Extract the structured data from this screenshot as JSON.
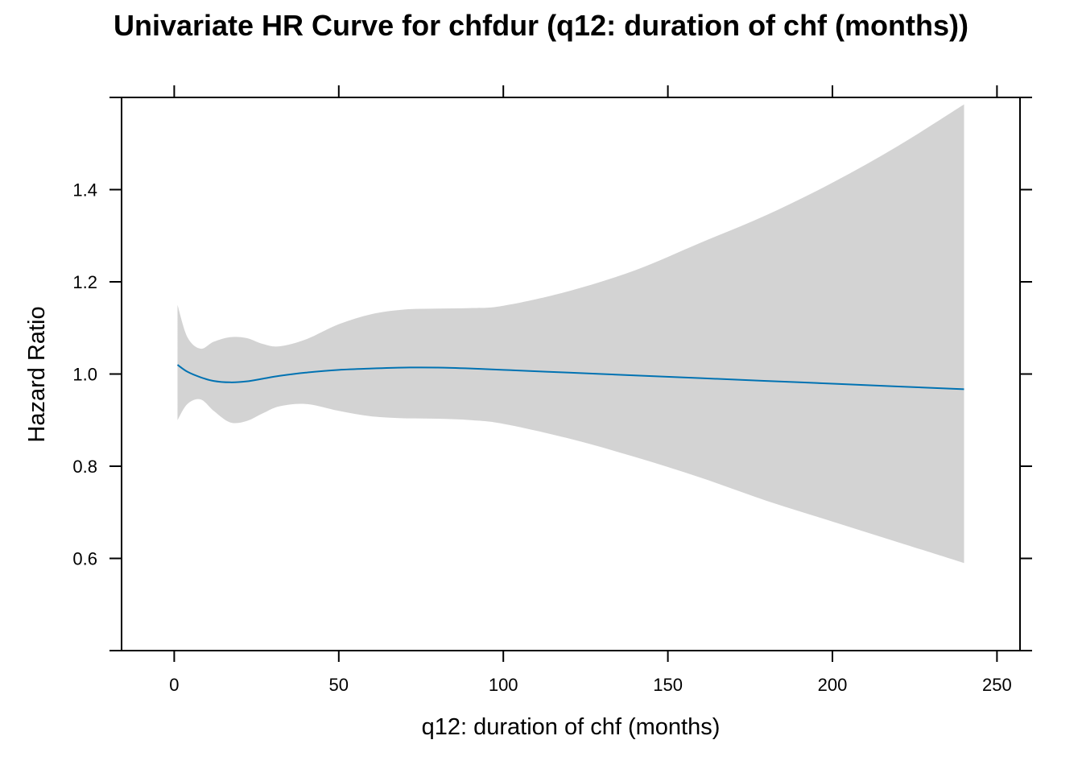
{
  "chart_data": {
    "type": "line",
    "title": "Univariate HR Curve for chfdur (q12: duration of chf (months))",
    "xlabel": "q12: duration of chf (months)",
    "ylabel": "Hazard Ratio",
    "xlim": [
      -16,
      257
    ],
    "ylim": [
      0.4,
      1.6
    ],
    "x_ticks": [
      0,
      50,
      100,
      150,
      200,
      250
    ],
    "x_tick_labels": [
      "0",
      "50",
      "100",
      "150",
      "200",
      "250"
    ],
    "y_ticks": [
      0.6,
      0.8,
      1.0,
      1.2,
      1.4
    ],
    "y_tick_labels": [
      "0.6",
      "0.8",
      "1.0",
      "1.2",
      "1.4"
    ],
    "grid": false,
    "colors": {
      "line": "#0072B2",
      "band": "#D3D3D3",
      "axis": "#000000"
    },
    "series": [
      {
        "x": [
          1,
          4,
          8,
          12,
          17,
          22,
          27,
          32,
          40,
          50,
          60,
          70,
          80,
          90,
          100,
          120,
          140,
          160,
          180,
          200,
          220,
          240
        ],
        "hr": [
          1.02,
          1.005,
          0.993,
          0.985,
          0.982,
          0.984,
          0.99,
          0.996,
          1.003,
          1.009,
          1.012,
          1.014,
          1.014,
          1.012,
          1.009,
          1.003,
          0.997,
          0.991,
          0.985,
          0.979,
          0.973,
          0.967
        ],
        "upper": [
          1.15,
          1.08,
          1.055,
          1.07,
          1.08,
          1.078,
          1.065,
          1.06,
          1.075,
          1.108,
          1.13,
          1.14,
          1.142,
          1.143,
          1.148,
          1.18,
          1.225,
          1.285,
          1.345,
          1.415,
          1.495,
          1.585
        ],
        "lower": [
          0.9,
          0.935,
          0.945,
          0.92,
          0.895,
          0.898,
          0.915,
          0.93,
          0.935,
          0.92,
          0.908,
          0.904,
          0.903,
          0.9,
          0.892,
          0.86,
          0.82,
          0.775,
          0.725,
          0.68,
          0.635,
          0.59
        ]
      }
    ]
  }
}
